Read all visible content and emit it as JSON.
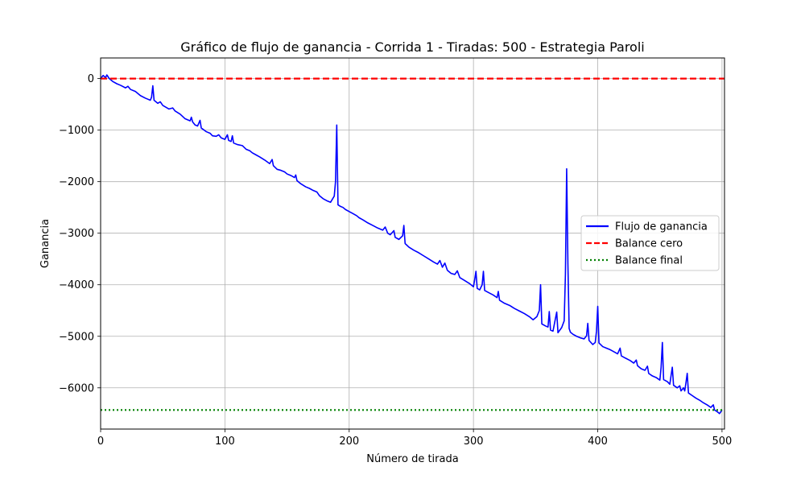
{
  "chart_data": {
    "type": "line",
    "title": "Gráfico de flujo de ganancia - Corrida 1 - Tiradas: 500 - Estrategia Paroli",
    "xlabel": "Número de tirada",
    "ylabel": "Ganancia",
    "xlim": [
      0,
      502
    ],
    "ylim": [
      -6800,
      400
    ],
    "xticks": [
      0,
      100,
      200,
      300,
      400,
      500
    ],
    "yticks": [
      0,
      -1000,
      -2000,
      -3000,
      -4000,
      -5000,
      -6000
    ],
    "xtick_labels": [
      "0",
      "100",
      "200",
      "300",
      "400",
      "500"
    ],
    "ytick_labels": [
      "0",
      "−1000",
      "−2000",
      "−3000",
      "−4000",
      "−5000",
      "−6000"
    ],
    "grid": true,
    "legend_position": "center-right",
    "series": [
      {
        "name": "Flujo de ganancia",
        "color": "#0000ff",
        "style": "solid",
        "points": [
          [
            0,
            0
          ],
          [
            2,
            60
          ],
          [
            4,
            20
          ],
          [
            5,
            70
          ],
          [
            7,
            0
          ],
          [
            10,
            -60
          ],
          [
            13,
            -100
          ],
          [
            16,
            -130
          ],
          [
            20,
            -180
          ],
          [
            22,
            -150
          ],
          [
            24,
            -210
          ],
          [
            28,
            -250
          ],
          [
            32,
            -330
          ],
          [
            36,
            -380
          ],
          [
            40,
            -420
          ],
          [
            41,
            -360
          ],
          [
            42,
            -140
          ],
          [
            43,
            -420
          ],
          [
            46,
            -480
          ],
          [
            48,
            -450
          ],
          [
            50,
            -520
          ],
          [
            55,
            -590
          ],
          [
            58,
            -570
          ],
          [
            60,
            -630
          ],
          [
            64,
            -690
          ],
          [
            68,
            -780
          ],
          [
            72,
            -820
          ],
          [
            73,
            -750
          ],
          [
            74,
            -840
          ],
          [
            76,
            -900
          ],
          [
            78,
            -920
          ],
          [
            80,
            -810
          ],
          [
            81,
            -960
          ],
          [
            85,
            -1030
          ],
          [
            88,
            -1060
          ],
          [
            90,
            -1110
          ],
          [
            93,
            -1120
          ],
          [
            95,
            -1090
          ],
          [
            97,
            -1150
          ],
          [
            100,
            -1180
          ],
          [
            102,
            -1090
          ],
          [
            103,
            -1200
          ],
          [
            105,
            -1220
          ],
          [
            106,
            -1110
          ],
          [
            107,
            -1250
          ],
          [
            110,
            -1280
          ],
          [
            114,
            -1300
          ],
          [
            117,
            -1370
          ],
          [
            120,
            -1400
          ],
          [
            122,
            -1440
          ],
          [
            125,
            -1480
          ],
          [
            128,
            -1520
          ],
          [
            132,
            -1580
          ],
          [
            136,
            -1650
          ],
          [
            138,
            -1570
          ],
          [
            139,
            -1690
          ],
          [
            142,
            -1760
          ],
          [
            145,
            -1780
          ],
          [
            148,
            -1810
          ],
          [
            150,
            -1850
          ],
          [
            153,
            -1880
          ],
          [
            156,
            -1920
          ],
          [
            157,
            -1870
          ],
          [
            158,
            -1980
          ],
          [
            161,
            -2040
          ],
          [
            165,
            -2100
          ],
          [
            168,
            -2130
          ],
          [
            171,
            -2170
          ],
          [
            174,
            -2200
          ],
          [
            176,
            -2270
          ],
          [
            179,
            -2330
          ],
          [
            182,
            -2370
          ],
          [
            185,
            -2400
          ],
          [
            188,
            -2280
          ],
          [
            189,
            -2000
          ],
          [
            190,
            -900
          ],
          [
            191,
            -2450
          ],
          [
            193,
            -2480
          ],
          [
            195,
            -2500
          ],
          [
            197,
            -2540
          ],
          [
            200,
            -2580
          ],
          [
            203,
            -2620
          ],
          [
            206,
            -2660
          ],
          [
            208,
            -2700
          ],
          [
            211,
            -2740
          ],
          [
            215,
            -2800
          ],
          [
            219,
            -2850
          ],
          [
            223,
            -2900
          ],
          [
            227,
            -2940
          ],
          [
            229,
            -2880
          ],
          [
            231,
            -3000
          ],
          [
            233,
            -3030
          ],
          [
            236,
            -2950
          ],
          [
            237,
            -3080
          ],
          [
            240,
            -3120
          ],
          [
            243,
            -3050
          ],
          [
            244,
            -2850
          ],
          [
            245,
            -3200
          ],
          [
            248,
            -3270
          ],
          [
            252,
            -3330
          ],
          [
            256,
            -3380
          ],
          [
            260,
            -3440
          ],
          [
            264,
            -3500
          ],
          [
            268,
            -3560
          ],
          [
            271,
            -3600
          ],
          [
            273,
            -3530
          ],
          [
            275,
            -3660
          ],
          [
            277,
            -3580
          ],
          [
            279,
            -3720
          ],
          [
            282,
            -3780
          ],
          [
            285,
            -3800
          ],
          [
            287,
            -3730
          ],
          [
            289,
            -3860
          ],
          [
            293,
            -3920
          ],
          [
            297,
            -3980
          ],
          [
            300,
            -4040
          ],
          [
            301,
            -3900
          ],
          [
            302,
            -3740
          ],
          [
            303,
            -4070
          ],
          [
            305,
            -4100
          ],
          [
            307,
            -4000
          ],
          [
            308,
            -3740
          ],
          [
            309,
            -4110
          ],
          [
            312,
            -4150
          ],
          [
            316,
            -4200
          ],
          [
            319,
            -4250
          ],
          [
            320,
            -4130
          ],
          [
            321,
            -4300
          ],
          [
            325,
            -4360
          ],
          [
            329,
            -4400
          ],
          [
            333,
            -4460
          ],
          [
            337,
            -4510
          ],
          [
            341,
            -4560
          ],
          [
            345,
            -4620
          ],
          [
            348,
            -4680
          ],
          [
            351,
            -4620
          ],
          [
            353,
            -4500
          ],
          [
            354,
            -4000
          ],
          [
            355,
            -4760
          ],
          [
            358,
            -4800
          ],
          [
            360,
            -4820
          ],
          [
            361,
            -4520
          ],
          [
            362,
            -4880
          ],
          [
            364,
            -4900
          ],
          [
            366,
            -4650
          ],
          [
            367,
            -4530
          ],
          [
            368,
            -4930
          ],
          [
            371,
            -4830
          ],
          [
            373,
            -4700
          ],
          [
            374,
            -3800
          ],
          [
            375,
            -1750
          ],
          [
            376,
            -3600
          ],
          [
            377,
            -4850
          ],
          [
            378,
            -4920
          ],
          [
            380,
            -4960
          ],
          [
            383,
            -5000
          ],
          [
            386,
            -5030
          ],
          [
            389,
            -5050
          ],
          [
            391,
            -4990
          ],
          [
            392,
            -4750
          ],
          [
            393,
            -5080
          ],
          [
            396,
            -5160
          ],
          [
            398,
            -5120
          ],
          [
            399,
            -4900
          ],
          [
            400,
            -4420
          ],
          [
            401,
            -5130
          ],
          [
            404,
            -5200
          ],
          [
            407,
            -5230
          ],
          [
            410,
            -5260
          ],
          [
            413,
            -5300
          ],
          [
            416,
            -5340
          ],
          [
            418,
            -5230
          ],
          [
            419,
            -5380
          ],
          [
            422,
            -5420
          ],
          [
            426,
            -5470
          ],
          [
            429,
            -5520
          ],
          [
            431,
            -5460
          ],
          [
            432,
            -5570
          ],
          [
            435,
            -5630
          ],
          [
            438,
            -5660
          ],
          [
            440,
            -5580
          ],
          [
            441,
            -5720
          ],
          [
            444,
            -5770
          ],
          [
            447,
            -5800
          ],
          [
            450,
            -5850
          ],
          [
            451,
            -5600
          ],
          [
            452,
            -5120
          ],
          [
            453,
            -5840
          ],
          [
            456,
            -5880
          ],
          [
            458,
            -5930
          ],
          [
            460,
            -5600
          ],
          [
            461,
            -5950
          ],
          [
            464,
            -6000
          ],
          [
            466,
            -5960
          ],
          [
            467,
            -6060
          ],
          [
            469,
            -6000
          ],
          [
            470,
            -6060
          ],
          [
            471,
            -5900
          ],
          [
            472,
            -5720
          ],
          [
            473,
            -6100
          ],
          [
            476,
            -6150
          ],
          [
            479,
            -6200
          ],
          [
            482,
            -6240
          ],
          [
            485,
            -6290
          ],
          [
            488,
            -6330
          ],
          [
            491,
            -6380
          ],
          [
            493,
            -6330
          ],
          [
            494,
            -6430
          ],
          [
            496,
            -6460
          ],
          [
            498,
            -6500
          ],
          [
            500,
            -6430
          ]
        ]
      },
      {
        "name": "Balance cero",
        "color": "#ff0000",
        "style": "dashed",
        "points": [
          [
            0,
            0
          ],
          [
            502,
            0
          ]
        ]
      },
      {
        "name": "Balance final",
        "color": "#008000",
        "style": "dotted",
        "points": [
          [
            0,
            -6430
          ],
          [
            502,
            -6430
          ]
        ]
      }
    ]
  }
}
